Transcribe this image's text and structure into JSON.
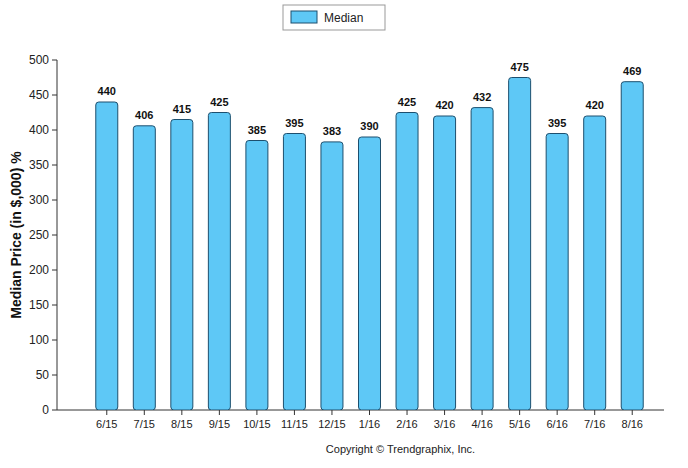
{
  "chart_data": {
    "type": "bar",
    "y_label": "Median Price (in $,000) %",
    "annotations": [
      "Copyright © Trendgraphix, Inc."
    ],
    "categories": [
      "6/15",
      "7/15",
      "8/15",
      "9/15",
      "10/15",
      "11/15",
      "12/15",
      "1/16",
      "2/16",
      "3/16",
      "4/16",
      "5/16",
      "6/16",
      "7/16",
      "8/16"
    ],
    "series": [
      {
        "name": "Median",
        "color": "#5ec8f6",
        "values": [
          440,
          406,
          415,
          425,
          385,
          395,
          383,
          390,
          425,
          420,
          432,
          475,
          395,
          420,
          469
        ]
      }
    ],
    "ylim": [
      0,
      500
    ],
    "yticks": [
      0,
      50,
      100,
      150,
      200,
      250,
      300,
      350,
      400,
      450,
      500
    ],
    "grid": false,
    "legend": "top",
    "data_labels": true
  }
}
